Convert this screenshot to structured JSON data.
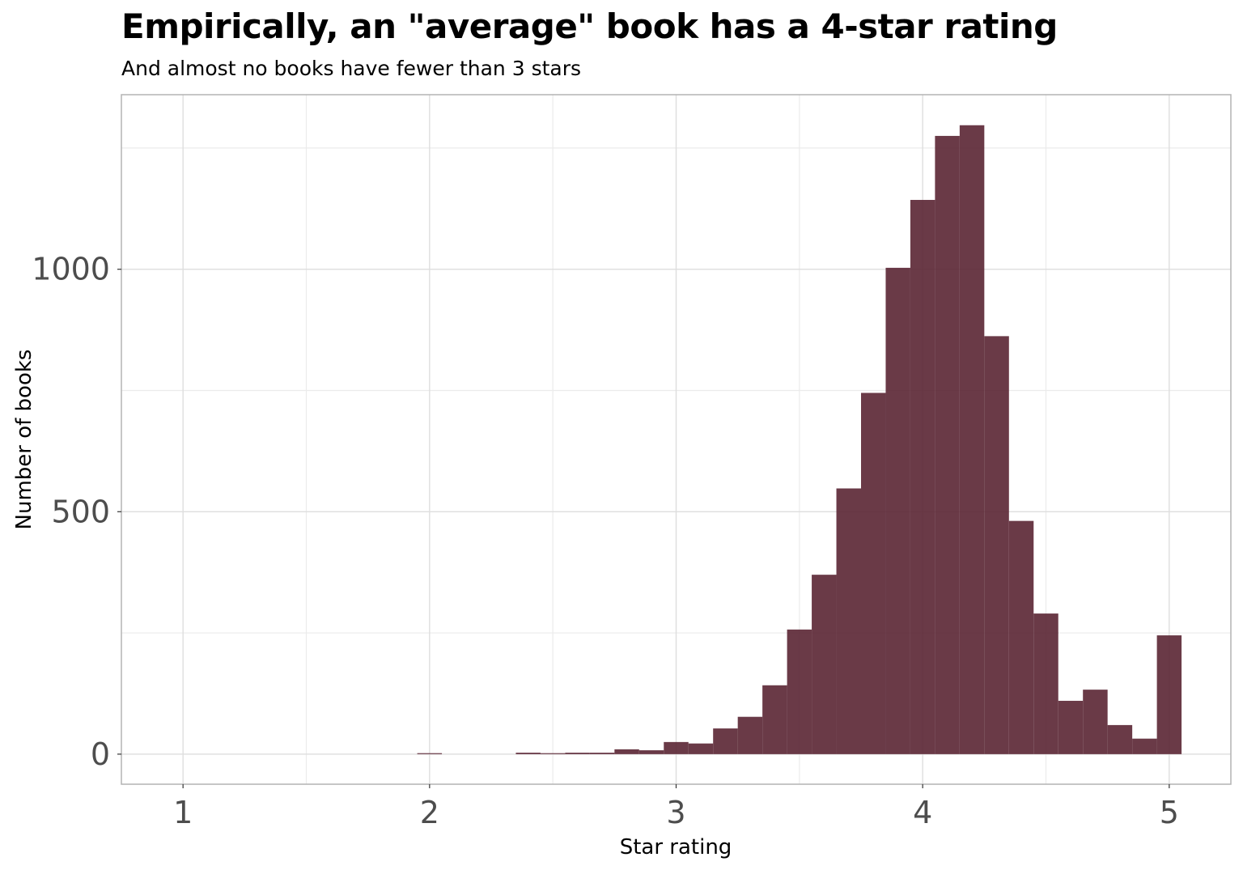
{
  "chart_data": {
    "type": "bar",
    "title": "Empirically, an \"average\" book has a 4-star rating",
    "subtitle": "And almost no books have fewer than 3 stars",
    "xlabel": "Star rating",
    "ylabel": "Number of books",
    "xlim": [
      0.75,
      5.25
    ],
    "ylim": [
      -62,
      1360
    ],
    "x_ticks": [
      1,
      2,
      3,
      4,
      5
    ],
    "y_ticks": [
      0,
      500,
      1000
    ],
    "grid": true,
    "bar_color": "#5a2533",
    "bin_width": 0.1,
    "bins": [
      {
        "x": 2.0,
        "count": 2
      },
      {
        "x": 2.4,
        "count": 3
      },
      {
        "x": 2.5,
        "count": 2
      },
      {
        "x": 2.6,
        "count": 3
      },
      {
        "x": 2.7,
        "count": 3
      },
      {
        "x": 2.8,
        "count": 10
      },
      {
        "x": 2.9,
        "count": 8
      },
      {
        "x": 3.0,
        "count": 25
      },
      {
        "x": 3.1,
        "count": 22
      },
      {
        "x": 3.2,
        "count": 53
      },
      {
        "x": 3.3,
        "count": 77
      },
      {
        "x": 3.4,
        "count": 142
      },
      {
        "x": 3.5,
        "count": 257
      },
      {
        "x": 3.6,
        "count": 370
      },
      {
        "x": 3.7,
        "count": 548
      },
      {
        "x": 3.8,
        "count": 745
      },
      {
        "x": 3.9,
        "count": 1003
      },
      {
        "x": 4.0,
        "count": 1143
      },
      {
        "x": 4.1,
        "count": 1275
      },
      {
        "x": 4.2,
        "count": 1297
      },
      {
        "x": 4.3,
        "count": 862
      },
      {
        "x": 4.4,
        "count": 481
      },
      {
        "x": 4.5,
        "count": 290
      },
      {
        "x": 4.6,
        "count": 110
      },
      {
        "x": 4.7,
        "count": 133
      },
      {
        "x": 4.8,
        "count": 60
      },
      {
        "x": 4.9,
        "count": 32
      },
      {
        "x": 5.0,
        "count": 245
      }
    ]
  }
}
